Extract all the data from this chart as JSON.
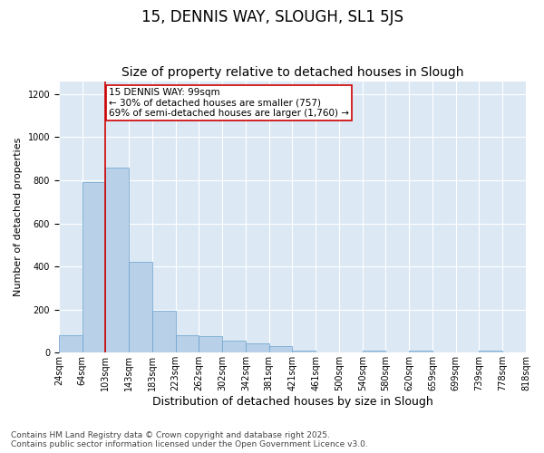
{
  "title1": "15, DENNIS WAY, SLOUGH, SL1 5JS",
  "title2": "Size of property relative to detached houses in Slough",
  "xlabel": "Distribution of detached houses by size in Slough",
  "ylabel": "Number of detached properties",
  "bar_heights": [
    80,
    790,
    860,
    420,
    195,
    80,
    75,
    55,
    45,
    30,
    10,
    0,
    0,
    10,
    0,
    10,
    0,
    0,
    10,
    0
  ],
  "bar_labels": [
    "24sqm",
    "64sqm",
    "103sqm",
    "143sqm",
    "183sqm",
    "223sqm",
    "262sqm",
    "302sqm",
    "342sqm",
    "381sqm",
    "421sqm",
    "461sqm",
    "500sqm",
    "540sqm",
    "580sqm",
    "620sqm",
    "659sqm",
    "699sqm",
    "739sqm",
    "778sqm",
    "818sqm"
  ],
  "bar_color": "#b8d0e8",
  "bar_edge_color": "#6aa0cc",
  "bg_color": "#dce9f5",
  "fig_bg_color": "#ffffff",
  "grid_color": "#ffffff",
  "vline_color": "#cc0000",
  "vline_x_idx": 2,
  "annotation_text": "15 DENNIS WAY: 99sqm\n← 30% of detached houses are smaller (757)\n69% of semi-detached houses are larger (1,760) →",
  "ylim": [
    0,
    1260
  ],
  "yticks": [
    0,
    200,
    400,
    600,
    800,
    1000,
    1200
  ],
  "footnote": "Contains HM Land Registry data © Crown copyright and database right 2025.\nContains public sector information licensed under the Open Government Licence v3.0.",
  "title1_fontsize": 12,
  "title2_fontsize": 10,
  "xlabel_fontsize": 9,
  "ylabel_fontsize": 8,
  "tick_fontsize": 7,
  "annotation_fontsize": 7.5,
  "footnote_fontsize": 6.5
}
